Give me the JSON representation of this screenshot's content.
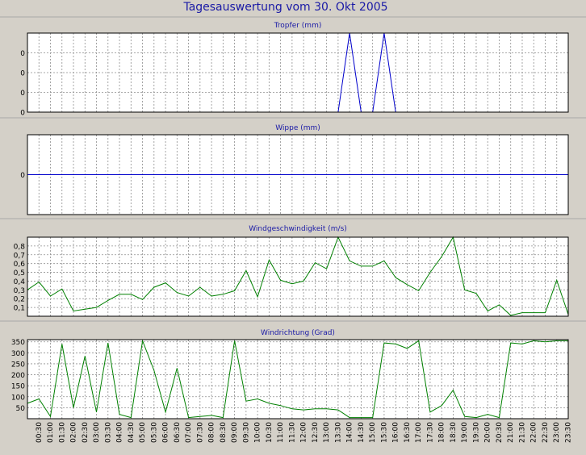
{
  "title": "Tagesauswertung vom 30. Okt 2005",
  "colors": {
    "background": "#d4d0c8",
    "plot_bg": "#ffffff",
    "title": "#1a1aa6",
    "series_blue": "#0000cc",
    "series_green": "#008000",
    "grid": "#8f8f8f",
    "separator": "#a8a8a8"
  },
  "x_tick_labels": [
    "00:30",
    "01:00",
    "01:30",
    "02:00",
    "02:30",
    "03:00",
    "03:30",
    "04:00",
    "04:30",
    "05:00",
    "05:30",
    "06:00",
    "06:30",
    "07:00",
    "07:30",
    "08:00",
    "08:30",
    "09:00",
    "09:30",
    "10:00",
    "10:30",
    "11:00",
    "11:30",
    "12:00",
    "12:30",
    "13:00",
    "13:30",
    "14:00",
    "14:30",
    "15:00",
    "15:30",
    "16:00",
    "16:30",
    "17:00",
    "17:30",
    "18:00",
    "18:30",
    "19:00",
    "19:30",
    "20:00",
    "20:30",
    "21:00",
    "21:30",
    "22:00",
    "22:30",
    "23:00",
    "23:30"
  ],
  "chart_data": [
    {
      "type": "line",
      "title": "Tropfer (mm)",
      "ylim": [
        0,
        0.04
      ],
      "y_ticks": [
        0,
        0.01,
        0.02,
        0.03
      ],
      "y_tick_labels": [
        "0",
        "0",
        "0",
        "0"
      ],
      "grid": true,
      "color": "#0000cc",
      "series": [
        {
          "values": [
            0,
            0,
            0,
            0,
            0,
            0,
            0,
            0,
            0,
            0,
            0,
            0,
            0,
            0,
            0,
            0,
            0,
            0,
            0,
            0,
            0,
            0,
            0,
            0,
            0,
            0,
            0,
            0,
            0.04,
            0,
            0,
            0.04,
            0,
            0,
            0,
            0,
            0,
            0,
            0,
            0,
            0,
            0,
            0,
            0,
            0,
            0,
            0,
            0
          ]
        }
      ]
    },
    {
      "type": "line",
      "title": "Wippe (mm)",
      "ylim": [
        -1,
        1
      ],
      "y_ticks": [
        0
      ],
      "y_tick_labels": [
        "0"
      ],
      "grid": true,
      "color": "#0000cc",
      "series": [
        {
          "values": [
            0,
            0,
            0,
            0,
            0,
            0,
            0,
            0,
            0,
            0,
            0,
            0,
            0,
            0,
            0,
            0,
            0,
            0,
            0,
            0,
            0,
            0,
            0,
            0,
            0,
            0,
            0,
            0,
            0,
            0,
            0,
            0,
            0,
            0,
            0,
            0,
            0,
            0,
            0,
            0,
            0,
            0,
            0,
            0,
            0,
            0,
            0,
            0
          ]
        }
      ]
    },
    {
      "type": "line",
      "title": "Windgeschwindigkeit (m/s)",
      "ylim": [
        0,
        0.9
      ],
      "y_ticks": [
        0.1,
        0.2,
        0.3,
        0.4,
        0.5,
        0.6,
        0.7,
        0.8
      ],
      "y_tick_labels": [
        "0,1",
        "0,2",
        "0,3",
        "0,4",
        "0,5",
        "0,6",
        "0,7",
        "0,8"
      ],
      "grid": true,
      "color": "#008000",
      "series": [
        {
          "values": [
            0.3,
            0.39,
            0.23,
            0.31,
            0.06,
            0.08,
            0.1,
            0.18,
            0.25,
            0.25,
            0.19,
            0.33,
            0.38,
            0.27,
            0.23,
            0.33,
            0.23,
            0.25,
            0.29,
            0.52,
            0.22,
            0.64,
            0.41,
            0.37,
            0.4,
            0.61,
            0.54,
            0.9,
            0.63,
            0.57,
            0.57,
            0.63,
            0.44,
            0.36,
            0.29,
            0.5,
            0.68,
            0.9,
            0.3,
            0.26,
            0.06,
            0.13,
            0.01,
            0.04,
            0.04,
            0.04,
            0.41,
            0.02
          ]
        }
      ]
    },
    {
      "type": "line",
      "title": "Windrichtung (Grad)",
      "ylim": [
        0,
        360
      ],
      "y_ticks": [
        50,
        100,
        150,
        200,
        250,
        300,
        350
      ],
      "y_tick_labels": [
        "50",
        "100",
        "150",
        "200",
        "250",
        "300",
        "350"
      ],
      "grid": true,
      "color": "#008000",
      "series": [
        {
          "values": [
            70,
            90,
            10,
            340,
            50,
            285,
            30,
            345,
            20,
            5,
            355,
            220,
            30,
            230,
            5,
            10,
            15,
            5,
            355,
            80,
            90,
            70,
            60,
            45,
            40,
            45,
            45,
            40,
            5,
            5,
            5,
            345,
            340,
            320,
            355,
            30,
            60,
            130,
            10,
            5,
            20,
            5,
            345,
            340,
            355,
            350,
            355,
            355
          ]
        }
      ]
    }
  ]
}
